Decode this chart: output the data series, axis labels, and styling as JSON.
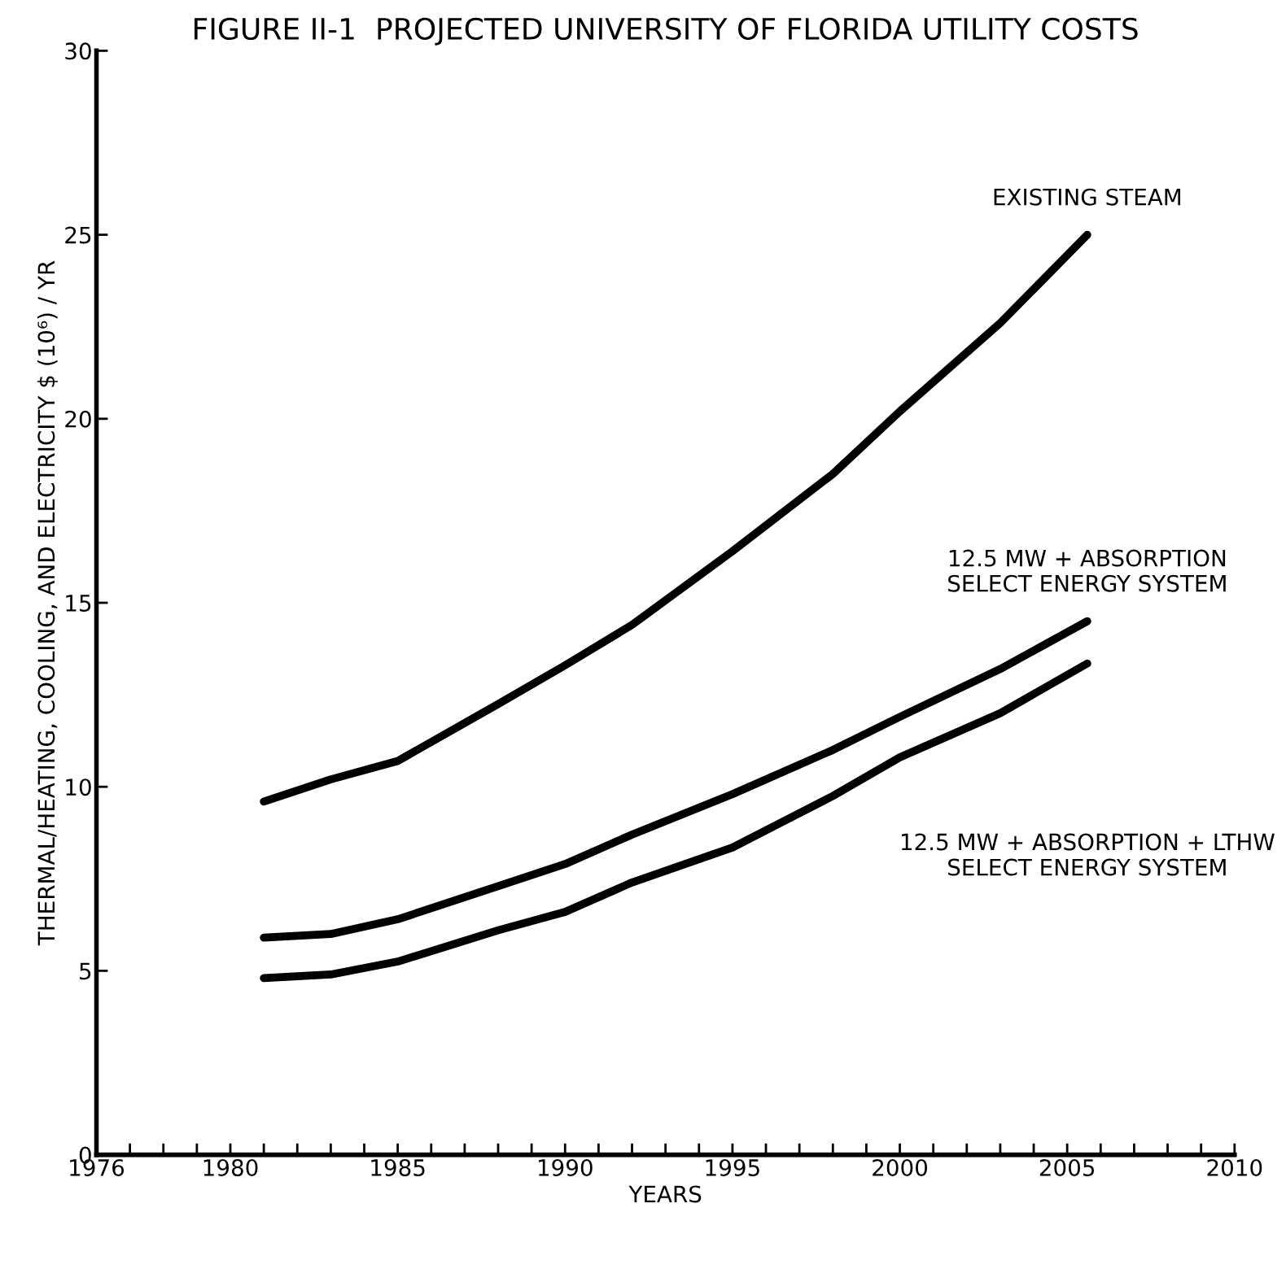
{
  "chart_data": {
    "type": "line",
    "title": "FIGURE II-1  PROJECTED UNIVERSITY OF FLORIDA UTILITY COSTS",
    "xlabel": "YEARS",
    "ylabel": "THERMAL/HEATING, COOLING, AND ELECTRICITY $ (10⁶) / YR",
    "xlim": [
      1976,
      2010
    ],
    "ylim": [
      0,
      30
    ],
    "xticks": [
      1976,
      {
        "value": 1977,
        "label": null
      },
      {
        "value": 1978,
        "label": null
      },
      {
        "value": 1979,
        "label": null
      },
      1980,
      {
        "value": 1981,
        "label": null
      },
      {
        "value": 1982,
        "label": null
      },
      {
        "value": 1983,
        "label": null
      },
      {
        "value": 1984,
        "label": null
      },
      1985,
      {
        "value": 1986,
        "label": null
      },
      {
        "value": 1987,
        "label": null
      },
      {
        "value": 1988,
        "label": null
      },
      {
        "value": 1989,
        "label": null
      },
      1990,
      {
        "value": 1991,
        "label": null
      },
      {
        "value": 1992,
        "label": null
      },
      {
        "value": 1993,
        "label": null
      },
      {
        "value": 1994,
        "label": null
      },
      1995,
      {
        "value": 1996,
        "label": null
      },
      {
        "value": 1997,
        "label": null
      },
      {
        "value": 1998,
        "label": null
      },
      {
        "value": 1999,
        "label": null
      },
      2000,
      {
        "value": 2001,
        "label": null
      },
      {
        "value": 2002,
        "label": null
      },
      {
        "value": 2003,
        "label": null
      },
      {
        "value": 2004,
        "label": null
      },
      2005,
      {
        "value": 2006,
        "label": null
      },
      {
        "value": 2007,
        "label": null
      },
      {
        "value": 2008,
        "label": null
      },
      {
        "value": 2009,
        "label": null
      },
      2010
    ],
    "yticks": [
      0,
      5,
      10,
      15,
      20,
      25,
      30
    ],
    "grid": false,
    "legend": false,
    "marker": "none",
    "line_style": "solid",
    "x": [
      1981,
      1983,
      1985,
      1988,
      1990,
      1992,
      1995,
      1998,
      2000,
      2003,
      2005.6
    ],
    "series": [
      {
        "name": "EXISTING STEAM",
        "color": "#000000",
        "values": [
          9.6,
          10.2,
          10.7,
          12.25,
          13.3,
          14.4,
          16.4,
          18.5,
          20.2,
          22.6,
          25.0
        ]
      },
      {
        "name": "12.5 MW + ABSORPTION\nSELECT ENERGY SYSTEM",
        "color": "#000000",
        "values": [
          5.9,
          6.0,
          6.4,
          7.3,
          7.9,
          8.7,
          9.8,
          11.0,
          11.9,
          13.2,
          14.5
        ]
      },
      {
        "name": "12.5 MW + ABSORPTION + LTHW\nSELECT ENERGY SYSTEM",
        "color": "#000000",
        "values": [
          4.8,
          4.9,
          5.25,
          6.1,
          6.6,
          7.4,
          8.35,
          9.75,
          10.8,
          12.0,
          13.35
        ]
      }
    ]
  }
}
